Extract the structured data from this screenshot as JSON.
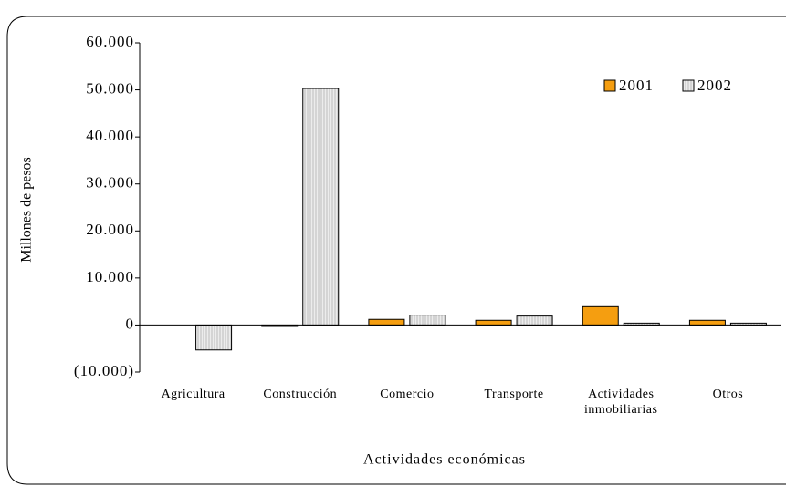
{
  "chart_data": {
    "type": "bar",
    "y_label": "Millones de pesos",
    "x_label": "Actividades económicas",
    "categories": [
      "Agricultura",
      "Construcción",
      "Comercio",
      "Transporte",
      "Actividades inmobiliarias",
      "Otros"
    ],
    "series": [
      {
        "name": "2001",
        "color": "#f59e10",
        "values": [
          null,
          -300,
          1200,
          1000,
          3900,
          1000
        ]
      },
      {
        "name": "2002",
        "color": "#ececec",
        "values": [
          -5300,
          50300,
          2100,
          1900,
          400,
          400
        ]
      }
    ],
    "ylim": [
      -10000,
      60000
    ],
    "yticks": [
      {
        "value": -10000,
        "label": "(10.000)"
      },
      0,
      {
        "value": 10000,
        "label": "10.000"
      },
      {
        "value": 20000,
        "label": "20.000"
      },
      {
        "value": 30000,
        "label": "30.000"
      },
      {
        "value": 40000,
        "label": "40.000"
      },
      {
        "value": 50000,
        "label": "50.000"
      },
      {
        "value": 60000,
        "label": "60.000"
      }
    ],
    "negative_tick_color": "#e8261c",
    "grid": false,
    "legend_position": "upper-right"
  }
}
